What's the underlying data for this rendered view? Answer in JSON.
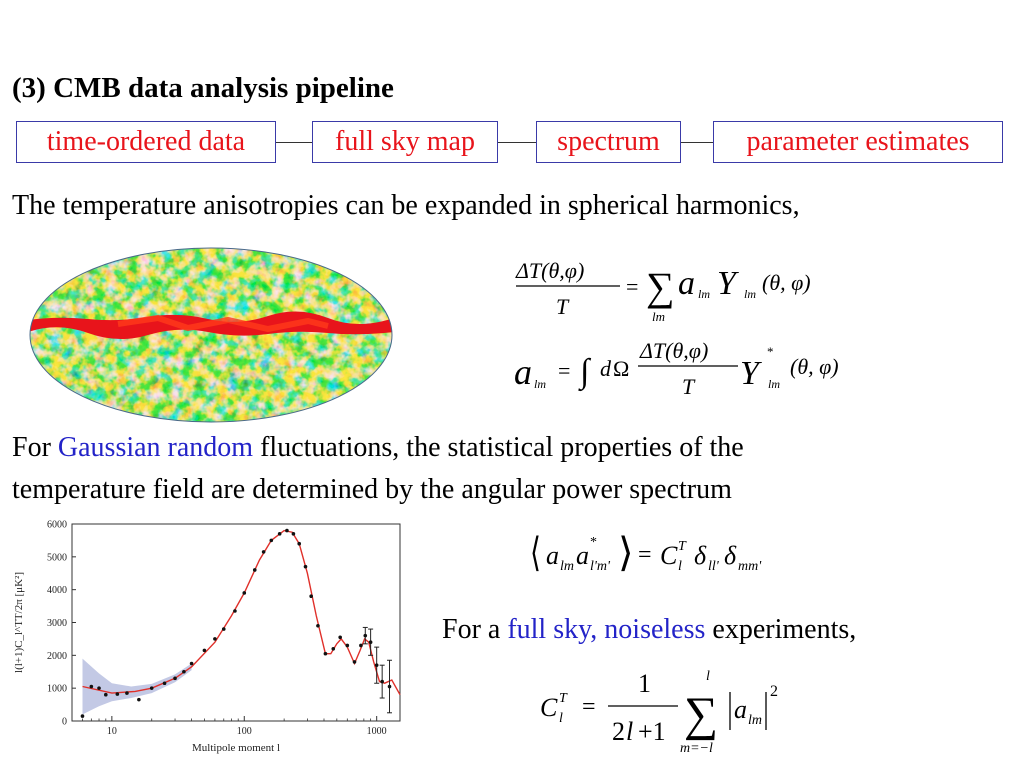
{
  "slide": {
    "title": "(3) CMB data analysis pipeline",
    "pipeline": [
      "time-ordered data",
      "full sky map",
      "spectrum",
      "parameter estimates"
    ],
    "intro": "The temperature anisotropies can be expanded in spherical harmonics,",
    "gaussian_line1": {
      "before": "For ",
      "highlight": "Gaussian random",
      "after": " fluctuations, the statistical properties of the"
    },
    "gaussian_line2": "temperature field are determined by the angular power spectrum",
    "fullsky": {
      "before": "For a ",
      "highlight": "full sky, noiseless",
      "after": " experiments,"
    },
    "colors": {
      "pipeline_text": "#e8141b",
      "pipeline_border": "#3a3aa8",
      "highlight": "#2323c8",
      "model_curve": "#e0302a",
      "cosmic_variance_band": "#b8c0e0"
    },
    "map_image": "cmb-sky-map"
  },
  "equations": {
    "expansion": {
      "lhs_num": "ΔT(θ,φ)",
      "lhs_den": "T",
      "rhs": "= Σ a_lm Y_lm(θ,φ)",
      "sum_index": "lm"
    },
    "coefficient": {
      "lhs": "a_lm",
      "rhs": "= ∫ dΩ ΔT(θ,φ)/T Y*_lm(θ,φ)"
    },
    "correlation": "⟨a_lm a*_l'm'⟩ = C_l^T δ_ll' δ_mm'",
    "estimator": {
      "lhs": "C_l^T",
      "num": "1",
      "den": "2l+1",
      "sum": "Σ_{m=-l}^{l} |a_lm|^2"
    }
  },
  "chart_data": {
    "type": "scatter",
    "xlabel": "Multipole moment  l",
    "ylabel": "l(l+1)C_l^TT/2π [μK²]",
    "xscale": "log",
    "xlim": [
      5,
      1500
    ],
    "ylim": [
      0,
      6000
    ],
    "x_ticks": [
      "10",
      "100",
      "1000"
    ],
    "y_ticks": [
      "0",
      "1000",
      "2000",
      "3000",
      "4000",
      "5000",
      "6000"
    ],
    "points": [
      {
        "x": 6,
        "y": 150
      },
      {
        "x": 7,
        "y": 1050
      },
      {
        "x": 8,
        "y": 1000
      },
      {
        "x": 9,
        "y": 800
      },
      {
        "x": 11,
        "y": 820
      },
      {
        "x": 13,
        "y": 850
      },
      {
        "x": 16,
        "y": 650
      },
      {
        "x": 20,
        "y": 1000
      },
      {
        "x": 25,
        "y": 1150
      },
      {
        "x": 30,
        "y": 1300
      },
      {
        "x": 35,
        "y": 1500
      },
      {
        "x": 40,
        "y": 1750
      },
      {
        "x": 50,
        "y": 2150
      },
      {
        "x": 60,
        "y": 2500
      },
      {
        "x": 70,
        "y": 2800
      },
      {
        "x": 85,
        "y": 3350
      },
      {
        "x": 100,
        "y": 3900
      },
      {
        "x": 120,
        "y": 4600
      },
      {
        "x": 140,
        "y": 5150
      },
      {
        "x": 160,
        "y": 5500
      },
      {
        "x": 185,
        "y": 5700
      },
      {
        "x": 210,
        "y": 5800
      },
      {
        "x": 235,
        "y": 5700
      },
      {
        "x": 260,
        "y": 5400
      },
      {
        "x": 290,
        "y": 4700
      },
      {
        "x": 320,
        "y": 3800
      },
      {
        "x": 360,
        "y": 2900
      },
      {
        "x": 410,
        "y": 2050
      },
      {
        "x": 470,
        "y": 2200
      },
      {
        "x": 530,
        "y": 2550
      },
      {
        "x": 600,
        "y": 2300
      },
      {
        "x": 680,
        "y": 1800
      },
      {
        "x": 760,
        "y": 2300
      },
      {
        "x": 820,
        "y": 2600
      },
      {
        "x": 900,
        "y": 2400
      },
      {
        "x": 1000,
        "y": 1700
      },
      {
        "x": 1100,
        "y": 1200
      },
      {
        "x": 1250,
        "y": 1050
      }
    ],
    "error_bars": [
      {
        "x": 820,
        "lo": 2350,
        "hi": 2850
      },
      {
        "x": 900,
        "lo": 2000,
        "hi": 2800
      },
      {
        "x": 1000,
        "lo": 1150,
        "hi": 2250
      },
      {
        "x": 1100,
        "lo": 700,
        "hi": 1700
      },
      {
        "x": 1250,
        "lo": 250,
        "hi": 1850
      }
    ],
    "model": [
      {
        "x": 6,
        "y": 1050
      },
      {
        "x": 10,
        "y": 850
      },
      {
        "x": 15,
        "y": 900
      },
      {
        "x": 20,
        "y": 1000
      },
      {
        "x": 30,
        "y": 1300
      },
      {
        "x": 40,
        "y": 1650
      },
      {
        "x": 60,
        "y": 2400
      },
      {
        "x": 80,
        "y": 3200
      },
      {
        "x": 100,
        "y": 3900
      },
      {
        "x": 130,
        "y": 4900
      },
      {
        "x": 160,
        "y": 5500
      },
      {
        "x": 200,
        "y": 5800
      },
      {
        "x": 230,
        "y": 5750
      },
      {
        "x": 260,
        "y": 5400
      },
      {
        "x": 300,
        "y": 4500
      },
      {
        "x": 350,
        "y": 3200
      },
      {
        "x": 410,
        "y": 2050
      },
      {
        "x": 450,
        "y": 2050
      },
      {
        "x": 500,
        "y": 2350
      },
      {
        "x": 540,
        "y": 2500
      },
      {
        "x": 600,
        "y": 2250
      },
      {
        "x": 680,
        "y": 1750
      },
      {
        "x": 750,
        "y": 2150
      },
      {
        "x": 810,
        "y": 2500
      },
      {
        "x": 870,
        "y": 2400
      },
      {
        "x": 950,
        "y": 1800
      },
      {
        "x": 1050,
        "y": 1200
      },
      {
        "x": 1150,
        "y": 1150
      },
      {
        "x": 1300,
        "y": 1250
      },
      {
        "x": 1500,
        "y": 800
      }
    ],
    "cosmic_variance_band": [
      {
        "x": 6,
        "lo": 200,
        "hi": 1900
      },
      {
        "x": 8,
        "lo": 450,
        "hi": 1450
      },
      {
        "x": 10,
        "lo": 600,
        "hi": 1150
      },
      {
        "x": 14,
        "lo": 700,
        "hi": 1050
      },
      {
        "x": 20,
        "lo": 850,
        "hi": 1130
      },
      {
        "x": 30,
        "lo": 1180,
        "hi": 1420
      },
      {
        "x": 40,
        "lo": 1550,
        "hi": 1750
      }
    ],
    "grid": false,
    "legend": "none"
  }
}
